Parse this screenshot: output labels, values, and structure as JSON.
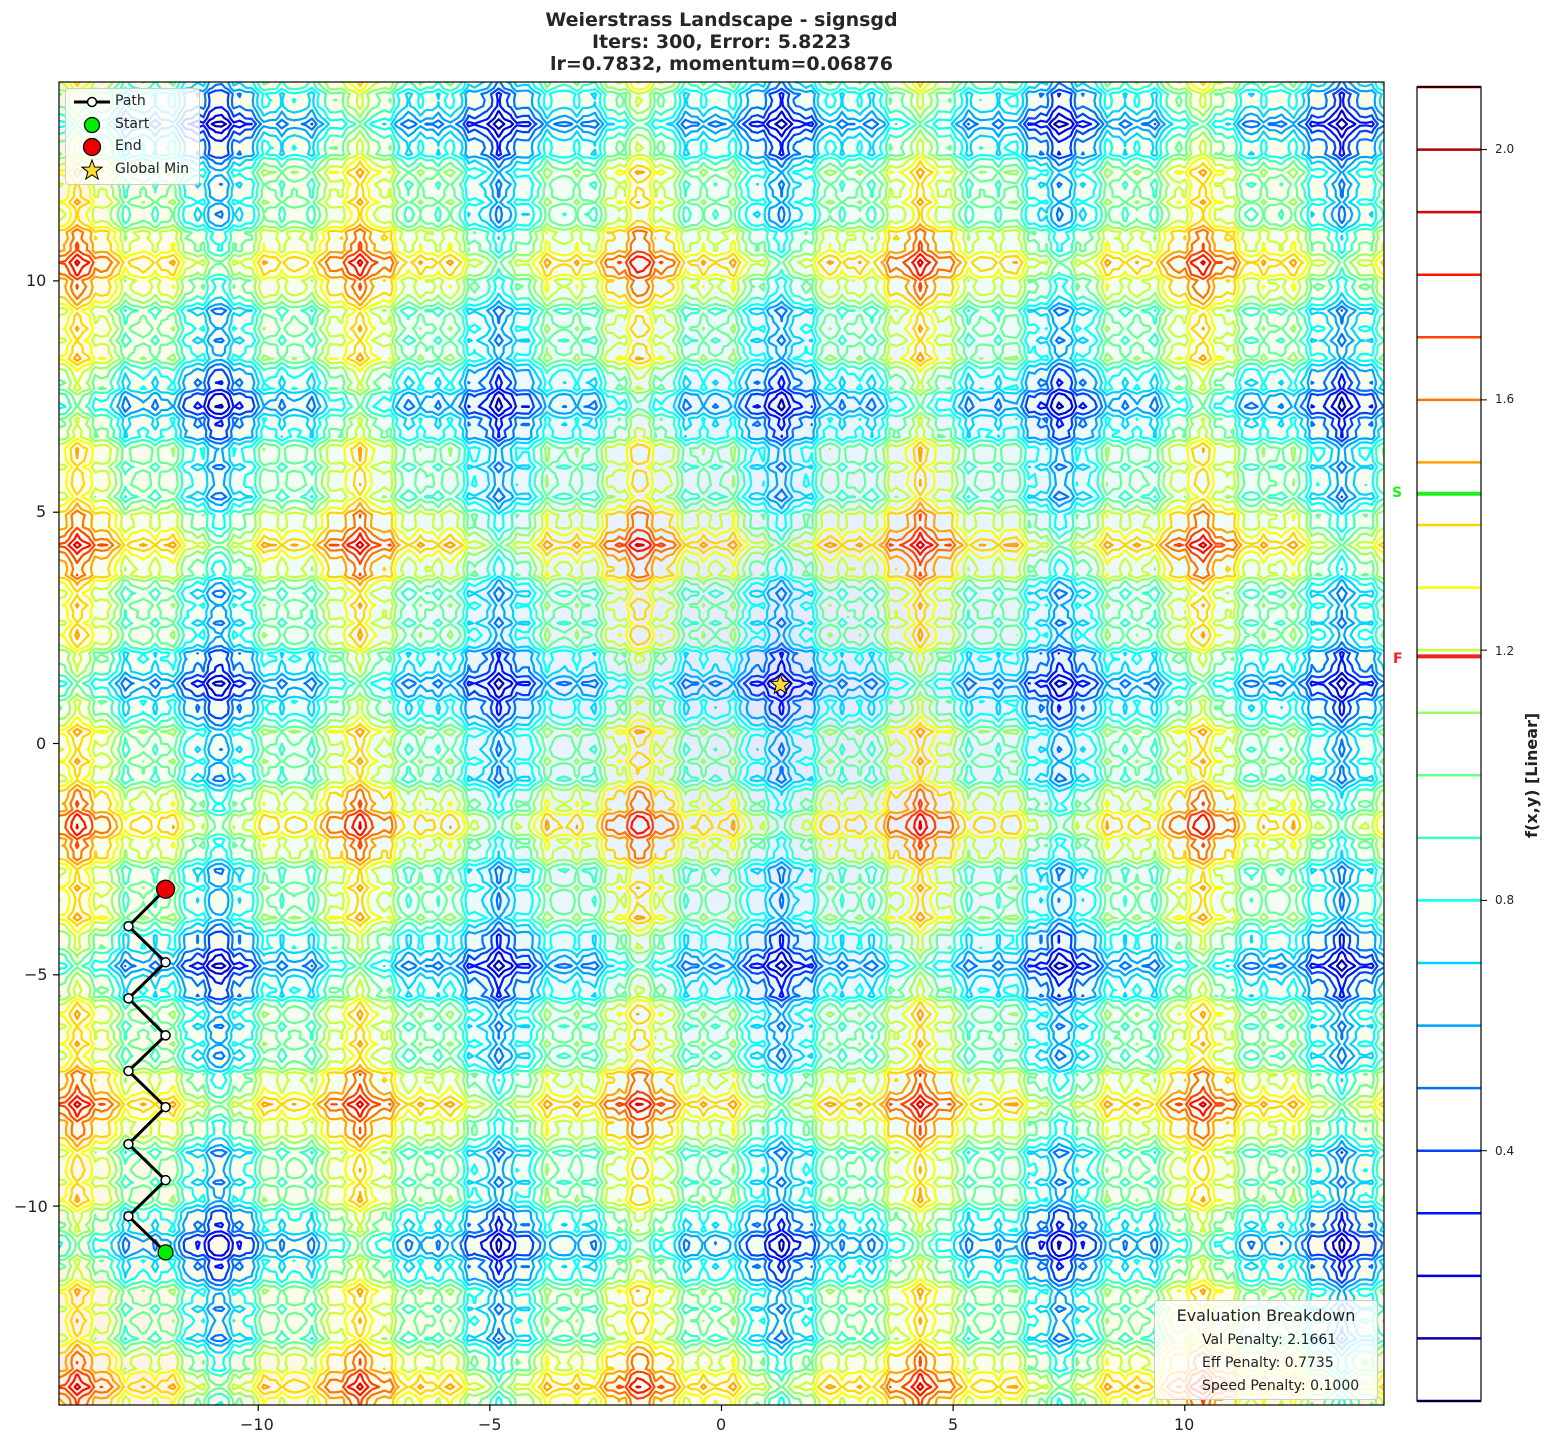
{
  "header": {
    "title_line1": "Weierstrass Landscape - signsgd",
    "title_line2": "Iters: 300, Error: 5.8223",
    "title_line3": "lr=0.7832, momentum=0.06876"
  },
  "legend": {
    "items": [
      {
        "label": "Path",
        "icon": "line-with-white-circle-marker"
      },
      {
        "label": "Start",
        "icon": "green-circle",
        "color": "#00ee00"
      },
      {
        "label": "End",
        "icon": "red-circle",
        "color": "#ee0000"
      },
      {
        "label": "Global Min",
        "icon": "gold-star",
        "color": "#ffdd33"
      }
    ]
  },
  "evaluation": {
    "heading": "Evaluation Breakdown",
    "val_penalty": "Val Penalty: 2.1661",
    "eff_penalty": "Eff Penalty: 0.7735",
    "speed_penalty": "Speed Penalty: 0.1000"
  },
  "colorbar": {
    "label": "f(x,y) [Linear]",
    "ticks": [
      "2.0",
      "1.6",
      "1.2",
      "0.8",
      "0.4"
    ],
    "start_marker": "S",
    "final_marker": "F",
    "start_color": "#22ee22",
    "final_color": "#ee2222"
  },
  "axes": {
    "xticks": [
      "−10",
      "−5",
      "0",
      "5",
      "10"
    ],
    "yticks": [
      "10",
      "5",
      "0",
      "−5",
      "−10"
    ]
  },
  "chart_data": {
    "type": "contour",
    "title": "Weierstrass Landscape - signsgd\nIters: 300, Error: 5.8223\nlr=0.7832, momentum=0.06876",
    "xlabel": "",
    "ylabel": "",
    "xlim": [
      -14.3,
      14.3
    ],
    "ylim": [
      -14.3,
      14.3
    ],
    "xticks": [
      -10,
      -5,
      0,
      5,
      10
    ],
    "yticks": [
      -10,
      -5,
      0,
      5,
      10
    ],
    "colormap": "jet",
    "colorbar_label": "f(x,y) [Linear]",
    "colorbar_range": [
      0.0,
      2.1
    ],
    "contour_levels": [
      0.0,
      0.1,
      0.2,
      0.3,
      0.4,
      0.5,
      0.6,
      0.7,
      0.8,
      0.9,
      1.0,
      1.1,
      1.2,
      1.3,
      1.4,
      1.5,
      1.6,
      1.7,
      1.8,
      1.9,
      2.0,
      2.1
    ],
    "colorbar_ticks": [
      0.4,
      0.8,
      1.2,
      1.6,
      2.0
    ],
    "colorbar_markers": [
      {
        "label": "S",
        "value": 1.45,
        "color": "#22ee22"
      },
      {
        "label": "F",
        "value": 1.19,
        "color": "#ee2222"
      }
    ],
    "series": [
      {
        "name": "Path",
        "x": [
          -12.0,
          -12.8,
          -12.0,
          -12.8,
          -12.0,
          -12.8,
          -12.0,
          -12.8,
          -12.0,
          -12.8,
          -12.0
        ],
        "y": [
          -11.0,
          -10.22,
          -9.44,
          -8.66,
          -7.86,
          -7.08,
          -6.31,
          -5.51,
          -4.73,
          -3.95,
          -3.15
        ]
      },
      {
        "name": "Start",
        "x": [
          -12.0
        ],
        "y": [
          -11.0
        ]
      },
      {
        "name": "End",
        "x": [
          -12.0
        ],
        "y": [
          -3.15
        ]
      },
      {
        "name": "Global Min",
        "x": [
          1.27
        ],
        "y": [
          1.27
        ]
      }
    ],
    "legend": [
      "Path",
      "Start",
      "End",
      "Global Min"
    ],
    "legend_position": "upper left",
    "annotations": [
      "Evaluation Breakdown",
      "Val Penalty: 2.1661",
      "Eff Penalty: 0.7735",
      "Speed Penalty: 0.1000"
    ],
    "grid": false
  }
}
